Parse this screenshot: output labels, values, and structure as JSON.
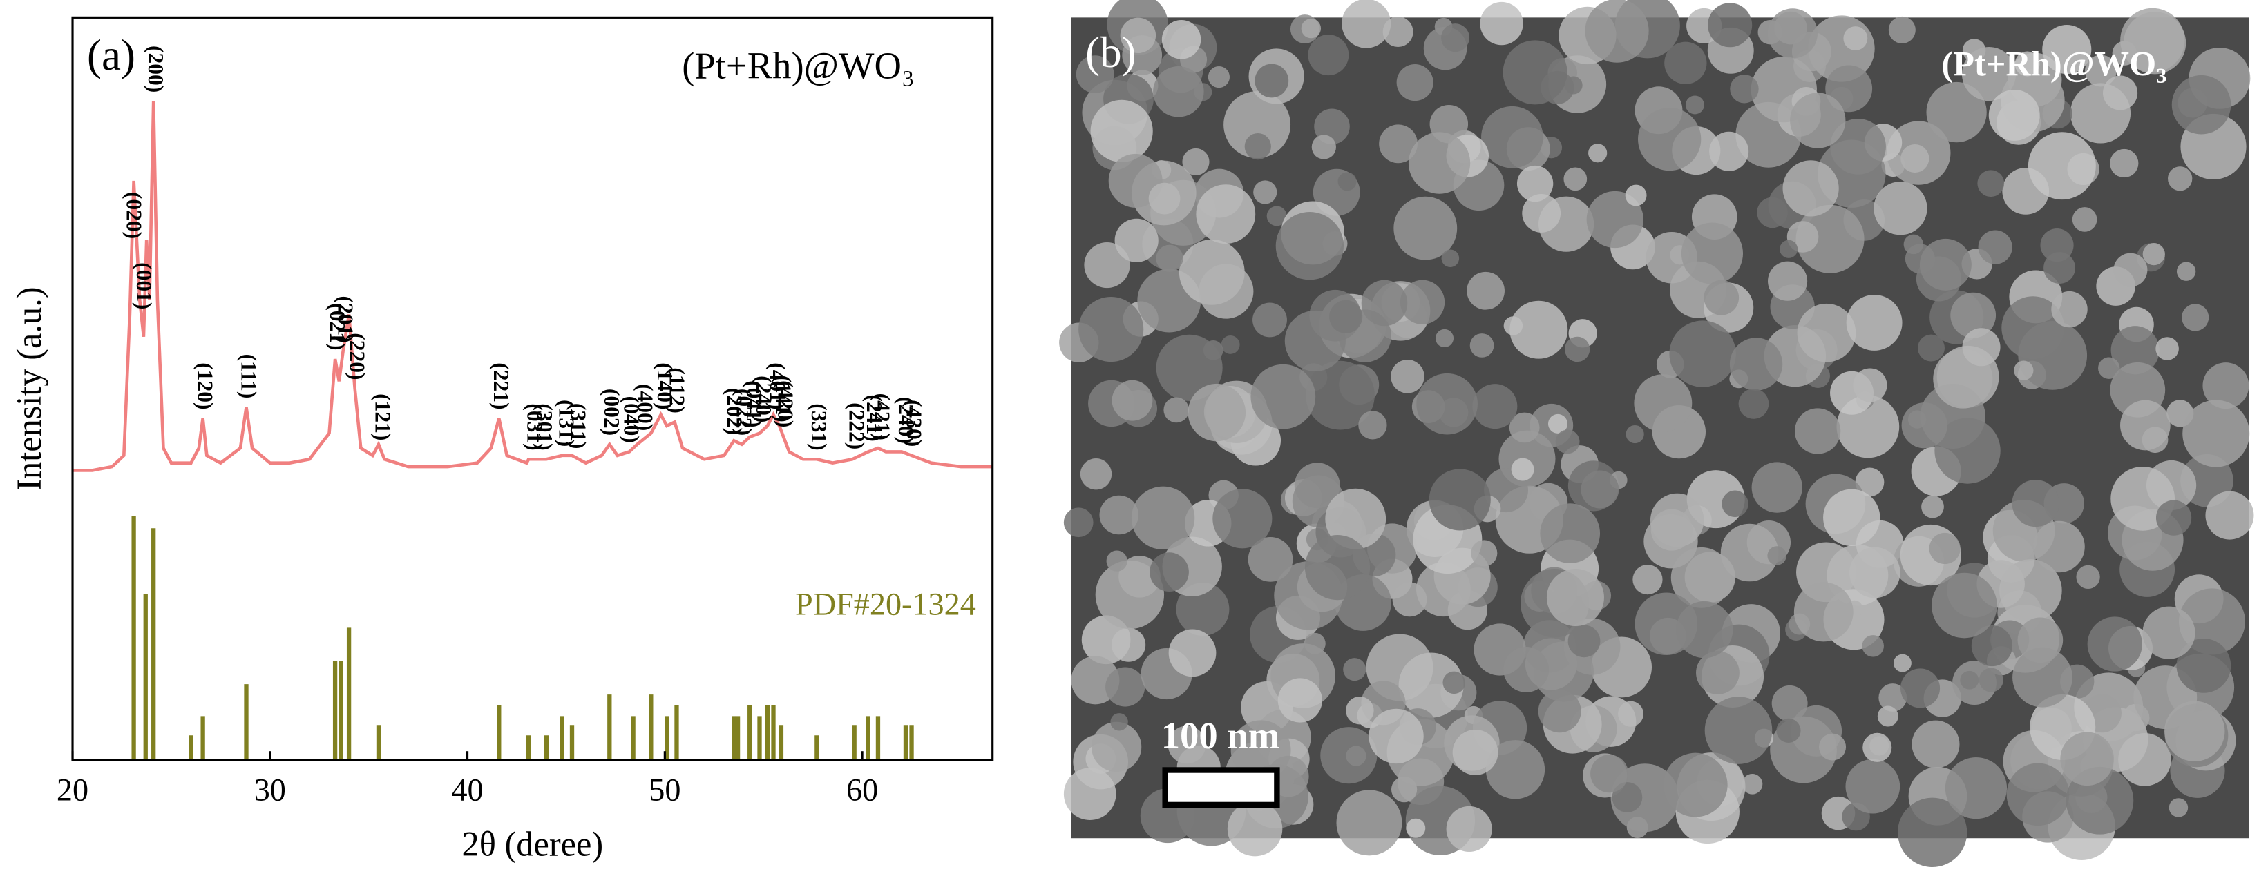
{
  "chart_data": {
    "type": "line",
    "panel_label": "(a)",
    "title": "(Pt+Rh)@WO₃",
    "x_label": "2θ (deree)",
    "y_label": "Intensity (a.u.)",
    "color": "#f08080",
    "x": [
      20,
      21,
      22,
      22.6,
      22.9,
      23.1,
      23.4,
      23.6,
      23.75,
      23.9,
      24.1,
      24.3,
      24.6,
      25,
      26,
      26.4,
      26.6,
      26.8,
      27.5,
      28.5,
      28.8,
      29.1,
      30,
      31,
      32,
      33,
      33.3,
      33.5,
      33.7,
      34.0,
      34.3,
      34.6,
      35.2,
      35.5,
      35.8,
      37,
      39,
      40.5,
      41.2,
      41.6,
      42,
      43,
      43.1,
      44,
      44.8,
      45.3,
      46,
      46.8,
      47.2,
      47.6,
      48.2,
      48.6,
      49.3,
      49.8,
      50.1,
      50.5,
      50.9,
      52,
      53,
      53.5,
      53.9,
      54.3,
      54.8,
      55.2,
      55.5,
      55.8,
      56.3,
      57,
      57.7,
      58.5,
      59.5,
      60.3,
      60.8,
      61.2,
      62,
      62.5,
      63.5,
      65,
      66.6
    ],
    "values": [
      39,
      39,
      39.5,
      41,
      60,
      78,
      62,
      57,
      70,
      62,
      88.7,
      62,
      42,
      40,
      40,
      42,
      46,
      41,
      40,
      42,
      47.5,
      42,
      40,
      40,
      40.5,
      44,
      54,
      51,
      55,
      60,
      50,
      42,
      41,
      42.5,
      40.5,
      39.5,
      39.5,
      40,
      42,
      46,
      41,
      40,
      40.5,
      40.5,
      41,
      41,
      40,
      41,
      42.5,
      41,
      41.5,
      42.5,
      44,
      46.5,
      45,
      45.5,
      42,
      40.5,
      41,
      43,
      42.5,
      43.5,
      44,
      45,
      46.5,
      45,
      41.5,
      40.5,
      40.5,
      40,
      40.5,
      41.5,
      42,
      41.5,
      41.5,
      41,
      40,
      39.5,
      39.5
    ],
    "reference": {
      "name": "PDF#20-1324",
      "color": "#808020",
      "x": [
        23.1,
        23.7,
        24.1,
        26.0,
        26.6,
        28.8,
        33.3,
        33.6,
        34.0,
        35.5,
        41.6,
        43.1,
        44.0,
        44.8,
        45.3,
        47.2,
        48.4,
        49.3,
        50.1,
        50.6,
        53.5,
        53.7,
        54.3,
        54.8,
        55.2,
        55.5,
        55.9,
        57.7,
        59.6,
        60.3,
        60.8,
        62.2,
        62.5
      ],
      "values": [
        32.8,
        22.3,
        31.2,
        3.3,
        5.9,
        10.2,
        13.3,
        13.3,
        17.8,
        4.7,
        7.4,
        3.3,
        3.3,
        5.9,
        4.7,
        8.8,
        5.9,
        8.8,
        5.9,
        7.4,
        5.9,
        5.9,
        7.4,
        5.9,
        7.4,
        7.4,
        4.7,
        3.3,
        4.7,
        5.9,
        5.9,
        4.7,
        4.7
      ]
    },
    "peak_labels": [
      {
        "text": "(020)",
        "x": 23.0
      },
      {
        "text": "(001)",
        "x": 23.5
      },
      {
        "text": "(200)",
        "x": 24.1
      },
      {
        "text": "(120)",
        "x": 26.6
      },
      {
        "text": "(111)",
        "x": 28.8
      },
      {
        "text": "(021)",
        "x": 33.3
      },
      {
        "text": "(201)",
        "x": 33.7
      },
      {
        "text": "(220)",
        "x": 34.3
      },
      {
        "text": "(121)",
        "x": 35.6
      },
      {
        "text": "(221)",
        "x": 41.6
      },
      {
        "text": "(031)",
        "x": 43.3
      },
      {
        "text": "(301)",
        "x": 43.8
      },
      {
        "text": "(131)",
        "x": 44.9
      },
      {
        "text": "(311)",
        "x": 45.5
      },
      {
        "text": "(002)",
        "x": 47.2
      },
      {
        "text": "(040)",
        "x": 48.2
      },
      {
        "text": "(400)",
        "x": 48.9
      },
      {
        "text": "(140)",
        "x": 49.9
      },
      {
        "text": "(112)",
        "x": 50.5
      },
      {
        "text": "(202)",
        "x": 53.4
      },
      {
        "text": "(022)",
        "x": 53.9
      },
      {
        "text": "(041)",
        "x": 54.4
      },
      {
        "text": "(240)",
        "x": 54.9
      },
      {
        "text": "(401)",
        "x": 55.6
      },
      {
        "text": "(420)",
        "x": 56.0
      },
      {
        "text": "(141)",
        "x": 55.9
      },
      {
        "text": "(331)",
        "x": 57.7
      },
      {
        "text": "(222)",
        "x": 59.6
      },
      {
        "text": "(241)",
        "x": 60.5
      },
      {
        "text": "(421)",
        "x": 60.9
      },
      {
        "text": "(240)",
        "x": 62.1
      },
      {
        "text": "(430)",
        "x": 62.5
      }
    ],
    "xlim": [
      20,
      66.6
    ],
    "ylim": [
      0,
      100
    ],
    "xticks": [
      20,
      30,
      40,
      50,
      60
    ]
  },
  "image_panel": {
    "panel_label": "(b)",
    "title": "(Pt+Rh)@WO₃",
    "scale_bar": "100 nm"
  }
}
